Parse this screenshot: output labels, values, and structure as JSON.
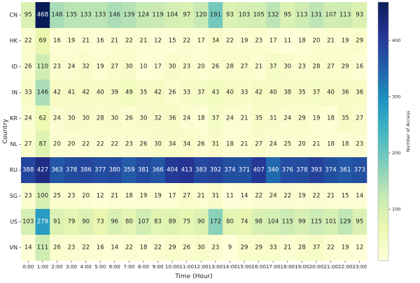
{
  "chart_data": {
    "type": "heatmap",
    "title": "",
    "xlabel": "Time (Hour)",
    "ylabel": "Country",
    "x": [
      "0:00",
      "1:00",
      "2:00",
      "3:00",
      "4:00",
      "5:00",
      "6:00",
      "7:00",
      "8:00",
      "9:00",
      "10:00",
      "11:00",
      "12:00",
      "13:00",
      "14:00",
      "15:00",
      "16:00",
      "17:00",
      "18:00",
      "19:00",
      "20:00",
      "21:00",
      "22:00",
      "23:00"
    ],
    "y": [
      "CN",
      "HK",
      "ID",
      "IN",
      "KR",
      "NL",
      "RU",
      "SG",
      "US",
      "VN"
    ],
    "values": [
      [
        95,
        468,
        148,
        135,
        133,
        133,
        146,
        139,
        124,
        119,
        104,
        97,
        120,
        191,
        93,
        103,
        105,
        132,
        95,
        113,
        131,
        107,
        113,
        93
      ],
      [
        22,
        69,
        16,
        19,
        21,
        16,
        21,
        22,
        21,
        12,
        15,
        22,
        17,
        34,
        22,
        19,
        23,
        17,
        11,
        18,
        20,
        21,
        19,
        29
      ],
      [
        26,
        110,
        23,
        24,
        32,
        19,
        27,
        30,
        10,
        17,
        30,
        23,
        20,
        26,
        28,
        27,
        21,
        37,
        30,
        23,
        28,
        27,
        29,
        16
      ],
      [
        33,
        146,
        42,
        41,
        42,
        40,
        39,
        49,
        35,
        42,
        26,
        33,
        37,
        43,
        40,
        33,
        42,
        40,
        38,
        35,
        37,
        40,
        36,
        36
      ],
      [
        24,
        62,
        24,
        30,
        30,
        28,
        30,
        26,
        30,
        32,
        36,
        24,
        18,
        37,
        24,
        21,
        35,
        31,
        24,
        29,
        19,
        18,
        35,
        27
      ],
      [
        27,
        87,
        20,
        20,
        22,
        22,
        22,
        23,
        26,
        30,
        34,
        34,
        26,
        31,
        18,
        21,
        27,
        24,
        25,
        20,
        21,
        18,
        18,
        23
      ],
      [
        388,
        427,
        363,
        378,
        386,
        377,
        380,
        359,
        381,
        366,
        404,
        413,
        383,
        392,
        374,
        371,
        407,
        340,
        376,
        378,
        393,
        374,
        361,
        373
      ],
      [
        23,
        100,
        25,
        23,
        20,
        12,
        21,
        18,
        19,
        19,
        17,
        27,
        21,
        31,
        11,
        14,
        22,
        24,
        22,
        19,
        22,
        21,
        15,
        14
      ],
      [
        103,
        279,
        91,
        79,
        90,
        73,
        96,
        80,
        107,
        83,
        89,
        75,
        90,
        172,
        80,
        74,
        98,
        104,
        115,
        99,
        115,
        101,
        129,
        95
      ],
      [
        14,
        111,
        26,
        23,
        22,
        16,
        14,
        22,
        18,
        22,
        29,
        26,
        30,
        23,
        9,
        29,
        29,
        33,
        21,
        28,
        37,
        22,
        19,
        12
      ]
    ],
    "colorbar": {
      "label": "Number of Access",
      "colormap": "YlGnBu",
      "range": [
        9,
        468
      ],
      "ticks": [
        100,
        200,
        300,
        400
      ]
    },
    "grid": false,
    "legend": "colorbar-right"
  }
}
